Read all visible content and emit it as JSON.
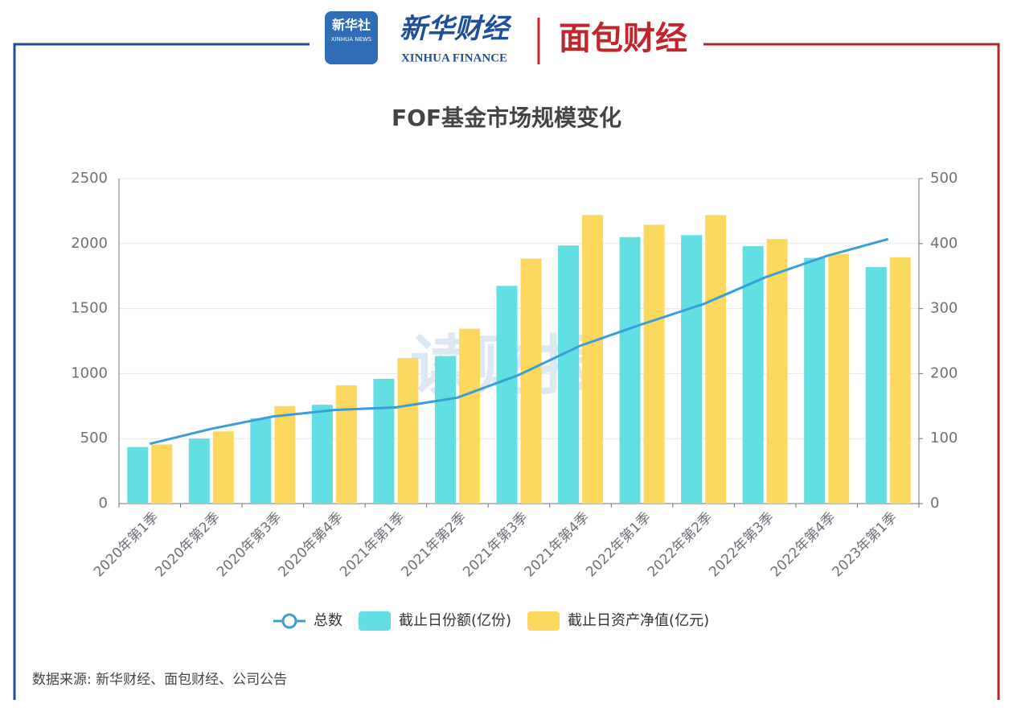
{
  "header": {
    "xinhua_logo": "新华社",
    "xinhua_logo_en": "XINHUA NEWS",
    "finance_logo": "新华财经",
    "finance_logo_en": "XINHUA FINANCE",
    "bread_logo": "面包财经"
  },
  "chart_data": {
    "type": "bar",
    "title": "FOF基金市场规模变化",
    "categories": [
      "2020年第1季",
      "2020年第2季",
      "2020年第3季",
      "2020年第4季",
      "2021年第1季",
      "2021年第2季",
      "2021年第3季",
      "2021年第4季",
      "2022年第1季",
      "2022年第2季",
      "2022年第3季",
      "2022年第4季",
      "2023年第1季"
    ],
    "series": [
      {
        "name": "总数",
        "type": "line",
        "axis": "y2",
        "color": "#3a9fd8",
        "values": [
          92,
          115,
          134,
          144,
          148,
          163,
          198,
          243,
          276,
          307,
          348,
          381,
          407
        ]
      },
      {
        "name": "截止日份额(亿份)",
        "type": "bar",
        "color": "#62dfe2",
        "values": [
          435,
          500,
          655,
          760,
          960,
          1135,
          1675,
          1985,
          2050,
          2065,
          1980,
          1890,
          1820
        ]
      },
      {
        "name": "截止日资产净值(亿元)",
        "type": "bar",
        "color": "#fdd85e",
        "values": [
          455,
          555,
          750,
          910,
          1120,
          1345,
          1885,
          2220,
          2145,
          2220,
          2035,
          1920,
          1895
        ]
      }
    ],
    "ylim": [
      0,
      2500
    ],
    "yticks": [
      0,
      500,
      1000,
      1500,
      2000,
      2500
    ],
    "y2lim": [
      0,
      500
    ],
    "y2ticks": [
      0,
      100,
      200,
      300,
      400,
      500
    ],
    "grid": true,
    "legend": "bottom",
    "watermark": "读财报",
    "source": "数据来源: 新华财经、面包财经、公司公告"
  }
}
